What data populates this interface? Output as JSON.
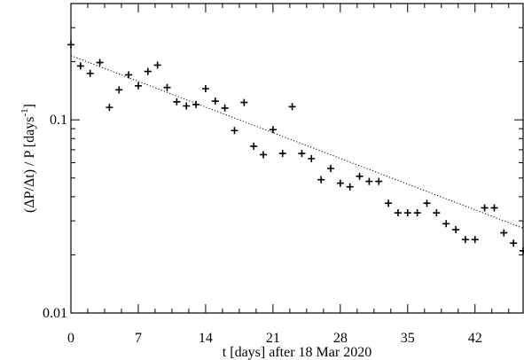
{
  "chart_data": {
    "type": "scatter",
    "title": "",
    "xlabel": "t [days] after 18 Mar 2020",
    "ylabel_main": "(ΔP/Δt) / P  [days",
    "ylabel_sup": "-1",
    "ylabel_close": "]",
    "xlim": [
      0,
      47
    ],
    "ylim": [
      0.01,
      0.4
    ],
    "yscale": "log",
    "x_ticks": [
      0,
      7,
      14,
      21,
      28,
      35,
      42
    ],
    "x_tick_labels": [
      "0",
      "7",
      "14",
      "21",
      "28",
      "35",
      "42"
    ],
    "y_ticks": [
      0.01,
      0.1
    ],
    "y_tick_labels": [
      "0.01",
      "0.1"
    ],
    "grid": false,
    "marker": "plus",
    "color": "#000000",
    "points": [
      [
        0,
        0.245
      ],
      [
        1,
        0.19
      ],
      [
        2,
        0.174
      ],
      [
        3,
        0.198
      ],
      [
        4,
        0.116
      ],
      [
        5,
        0.143
      ],
      [
        6,
        0.171
      ],
      [
        7,
        0.15
      ],
      [
        8,
        0.178
      ],
      [
        9,
        0.192
      ],
      [
        10,
        0.147
      ],
      [
        11,
        0.124
      ],
      [
        12,
        0.118
      ],
      [
        13,
        0.12
      ],
      [
        14,
        0.145
      ],
      [
        15,
        0.125
      ],
      [
        16,
        0.115
      ],
      [
        17,
        0.088
      ],
      [
        18,
        0.123
      ],
      [
        19,
        0.073
      ],
      [
        20,
        0.066
      ],
      [
        21,
        0.089
      ],
      [
        22,
        0.067
      ],
      [
        23,
        0.117
      ],
      [
        24,
        0.067
      ],
      [
        25,
        0.063
      ],
      [
        26,
        0.049
      ],
      [
        27,
        0.056
      ],
      [
        28,
        0.047
      ],
      [
        29,
        0.045
      ],
      [
        30,
        0.051
      ],
      [
        31,
        0.048
      ],
      [
        32,
        0.048
      ],
      [
        33,
        0.037
      ],
      [
        34,
        0.033
      ],
      [
        35,
        0.033
      ],
      [
        36,
        0.033
      ],
      [
        37,
        0.037
      ],
      [
        38,
        0.033
      ],
      [
        39,
        0.029
      ],
      [
        40,
        0.027
      ],
      [
        41,
        0.024
      ],
      [
        42,
        0.024
      ],
      [
        43,
        0.035
      ],
      [
        44,
        0.035
      ],
      [
        45,
        0.026
      ],
      [
        46,
        0.023
      ],
      [
        47,
        0.021
      ]
    ],
    "fit_line": {
      "style": "dotted",
      "x": [
        0,
        47
      ],
      "y": [
        0.215,
        0.0275
      ]
    }
  }
}
